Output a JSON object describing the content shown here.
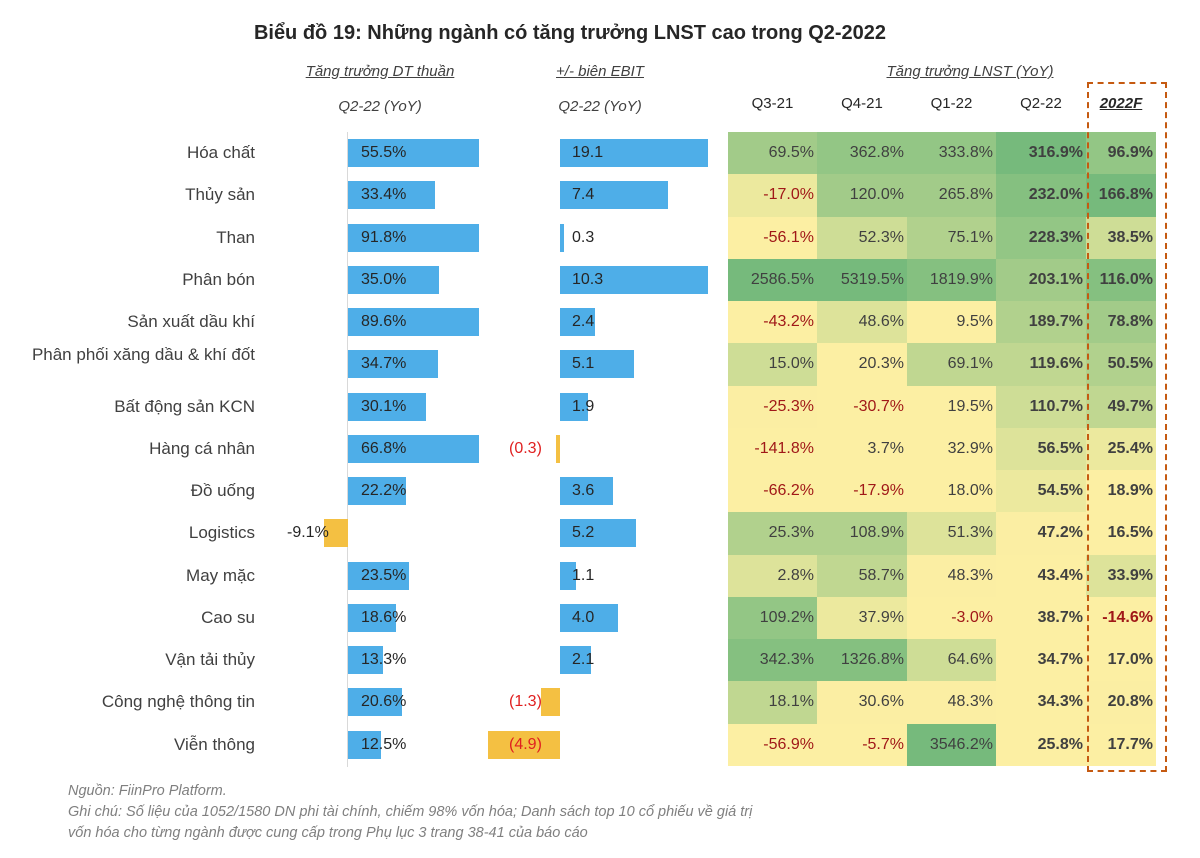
{
  "title": "Biểu đồ 19: Những ngành có tăng trưởng LNST cao trong Q2-2022",
  "headers": {
    "dt_title": "Tăng trưởng DT thuần",
    "dt_sub": "Q2-22 (YoY)",
    "ebit_title": "+/- biên EBIT",
    "ebit_sub": "Q2-22 (YoY)",
    "lnst_title": "Tăng trưởng LNST (YoY)",
    "lnst_cols": [
      "Q3-21",
      "Q4-21",
      "Q1-22",
      "Q2-22",
      "2022F"
    ]
  },
  "chart_data": {
    "type": "table",
    "title": "Biểu đồ 19: Những ngành có tăng trưởng LNST cao trong Q2-2022",
    "categories": [
      "Hóa chất",
      "Thủy sản",
      "Than",
      "Phân bón",
      "Sản xuất dầu khí",
      "Phân phối xăng dầu & khí đốt",
      "Bất động sản KCN",
      "Hàng cá nhân",
      "Đồ uống",
      "Logistics",
      "May mặc",
      "Cao su",
      "Vận tải thủy",
      "Công nghệ thông tin",
      "Viễn thông"
    ],
    "dt_growth_pct": [
      55.5,
      33.4,
      91.8,
      35.0,
      89.6,
      34.7,
      30.1,
      66.8,
      22.2,
      -9.1,
      23.5,
      18.6,
      13.3,
      20.6,
      12.5
    ],
    "dt_labels": [
      "55.5%",
      "33.4%",
      "91.8%",
      "35.0%",
      "89.6%",
      "34.7%",
      "30.1%",
      "66.8%",
      "22.2%",
      "-9.1%",
      "23.5%",
      "18.6%",
      "13.3%",
      "20.6%",
      "12.5%"
    ],
    "ebit_change": [
      19.1,
      7.4,
      0.3,
      10.3,
      2.4,
      5.1,
      1.9,
      -0.3,
      3.6,
      5.2,
      1.1,
      4.0,
      2.1,
      -1.3,
      -4.9
    ],
    "ebit_labels": [
      "19.1",
      "7.4",
      "0.3",
      "10.3",
      "2.4",
      "5.1",
      "1.9",
      "(0.3)",
      "3.6",
      "5.2",
      "1.1",
      "4.0",
      "2.1",
      "(1.3)",
      "(4.9)"
    ],
    "lnst": {
      "Q3-21": [
        69.5,
        -17.0,
        -56.1,
        2586.5,
        -43.2,
        15.0,
        -25.3,
        -141.8,
        -66.2,
        25.3,
        2.8,
        109.2,
        342.3,
        18.1,
        -56.9
      ],
      "Q4-21": [
        362.8,
        120.0,
        52.3,
        5319.5,
        48.6,
        20.3,
        -30.7,
        3.7,
        -17.9,
        108.9,
        58.7,
        37.9,
        1326.8,
        30.6,
        -5.7
      ],
      "Q1-22": [
        333.8,
        265.8,
        75.1,
        1819.9,
        9.5,
        69.1,
        19.5,
        32.9,
        18.0,
        51.3,
        48.3,
        -3.0,
        64.6,
        48.3,
        3546.2
      ],
      "Q2-22": [
        316.9,
        232.0,
        228.3,
        203.1,
        189.7,
        119.6,
        110.7,
        56.5,
        54.5,
        47.2,
        43.4,
        38.7,
        34.7,
        34.3,
        25.8
      ],
      "2022F": [
        96.9,
        166.8,
        38.5,
        116.0,
        78.8,
        50.5,
        49.7,
        25.4,
        18.9,
        16.5,
        33.9,
        -14.6,
        17.0,
        20.8,
        17.7
      ]
    },
    "colors": {
      "positive_bar": "#4eaee8",
      "negative_bar": "#f4c042",
      "negative_label": "#e02020",
      "heat_low": "#fcefa3",
      "heat_high": "#76ba7c",
      "highlight_box": "#c55a11"
    }
  },
  "notes": {
    "source": "Nguồn: FiinPro Platform.",
    "note1": "Ghi chú: Số liệu của 1052/1580 DN phi tài chính, chiếm 98% vốn hóa; Danh sách top 10 cổ phiếu về giá trị",
    "note2": "vốn hóa cho từng ngành được cung cấp trong Phụ lục 3 trang 38-41 của báo cáo"
  }
}
